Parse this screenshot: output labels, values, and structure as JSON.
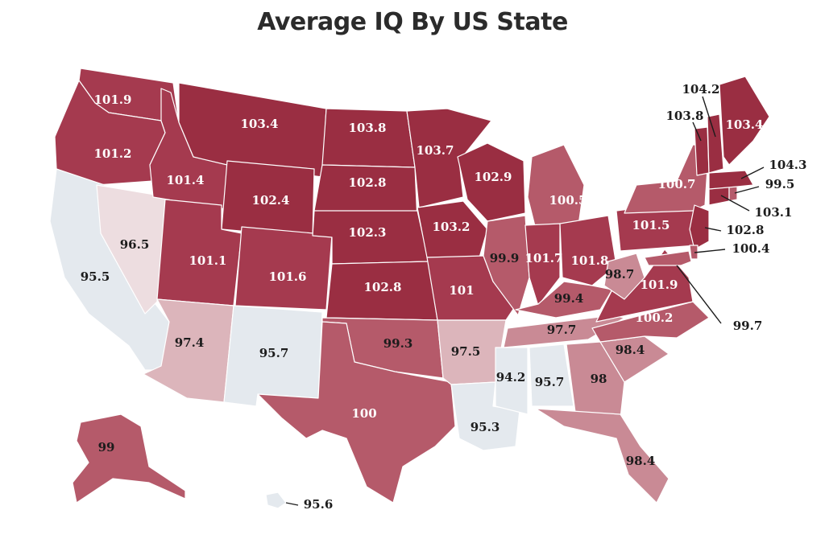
{
  "title": "Average IQ By US State",
  "colors": {
    "darkest": "#9a2e42",
    "dark": "#a53a4f",
    "medium": "#b55a6a",
    "light": "#c98a95",
    "lighter": "#dcb5bb",
    "pale": "#eddde0",
    "palest": "#e4e9ee",
    "background": "#ffffff"
  },
  "states": [
    {
      "id": "WA",
      "label": "101.9",
      "value": 101.9
    },
    {
      "id": "OR",
      "label": "101.2",
      "value": 101.2
    },
    {
      "id": "CA",
      "label": "95.5",
      "value": 95.5
    },
    {
      "id": "NV",
      "label": "96.5",
      "value": 96.5
    },
    {
      "id": "ID",
      "label": "101.4",
      "value": 101.4
    },
    {
      "id": "MT",
      "label": "103.4",
      "value": 103.4
    },
    {
      "id": "WY",
      "label": "102.4",
      "value": 102.4
    },
    {
      "id": "UT",
      "label": "101.1",
      "value": 101.1
    },
    {
      "id": "AZ",
      "label": "97.4",
      "value": 97.4
    },
    {
      "id": "CO",
      "label": "101.6",
      "value": 101.6
    },
    {
      "id": "NM",
      "label": "95.7",
      "value": 95.7
    },
    {
      "id": "ND",
      "label": "103.8",
      "value": 103.8
    },
    {
      "id": "SD",
      "label": "102.8",
      "value": 102.8
    },
    {
      "id": "NE",
      "label": "102.3",
      "value": 102.3
    },
    {
      "id": "KS",
      "label": "102.8",
      "value": 102.8
    },
    {
      "id": "OK",
      "label": "99.3",
      "value": 99.3
    },
    {
      "id": "TX",
      "label": "100",
      "value": 100
    },
    {
      "id": "MN",
      "label": "103.7",
      "value": 103.7
    },
    {
      "id": "IA",
      "label": "103.2",
      "value": 103.2
    },
    {
      "id": "MO",
      "label": "101",
      "value": 101
    },
    {
      "id": "AR",
      "label": "97.5",
      "value": 97.5
    },
    {
      "id": "LA",
      "label": "95.3",
      "value": 95.3
    },
    {
      "id": "WI",
      "label": "102.9",
      "value": 102.9
    },
    {
      "id": "IL",
      "label": "99.9",
      "value": 99.9
    },
    {
      "id": "MI",
      "label": "100.5",
      "value": 100.5
    },
    {
      "id": "IN",
      "label": "101.7",
      "value": 101.7
    },
    {
      "id": "OH",
      "label": "101.8",
      "value": 101.8
    },
    {
      "id": "KY",
      "label": "99.4",
      "value": 99.4
    },
    {
      "id": "TN",
      "label": "97.7",
      "value": 97.7
    },
    {
      "id": "MS",
      "label": "94.2",
      "value": 94.2
    },
    {
      "id": "AL",
      "label": "95.7",
      "value": 95.7
    },
    {
      "id": "GA",
      "label": "98",
      "value": 98
    },
    {
      "id": "FL",
      "label": "98.4",
      "value": 98.4
    },
    {
      "id": "SC",
      "label": "98.4",
      "value": 98.4
    },
    {
      "id": "NC",
      "label": "100.2",
      "value": 100.2
    },
    {
      "id": "VA",
      "label": "101.9",
      "value": 101.9
    },
    {
      "id": "WV",
      "label": "98.7",
      "value": 98.7
    },
    {
      "id": "PA",
      "label": "101.5",
      "value": 101.5
    },
    {
      "id": "NY",
      "label": "100.7",
      "value": 100.7
    },
    {
      "id": "NJ",
      "label": "102.8",
      "value": 102.8
    },
    {
      "id": "DE",
      "label": "100.4",
      "value": 100.4
    },
    {
      "id": "MD",
      "label": "99.7",
      "value": 99.7
    },
    {
      "id": "CT",
      "label": "103.1",
      "value": 103.1
    },
    {
      "id": "RI",
      "label": "99.5",
      "value": 99.5
    },
    {
      "id": "MA",
      "label": "104.3",
      "value": 104.3
    },
    {
      "id": "VT",
      "label": "103.8",
      "value": 103.8
    },
    {
      "id": "NH",
      "label": "104.2",
      "value": 104.2
    },
    {
      "id": "ME",
      "label": "103.4",
      "value": 103.4
    },
    {
      "id": "AK",
      "label": "99",
      "value": 99
    },
    {
      "id": "HI",
      "label": "95.6",
      "value": 95.6
    }
  ]
}
